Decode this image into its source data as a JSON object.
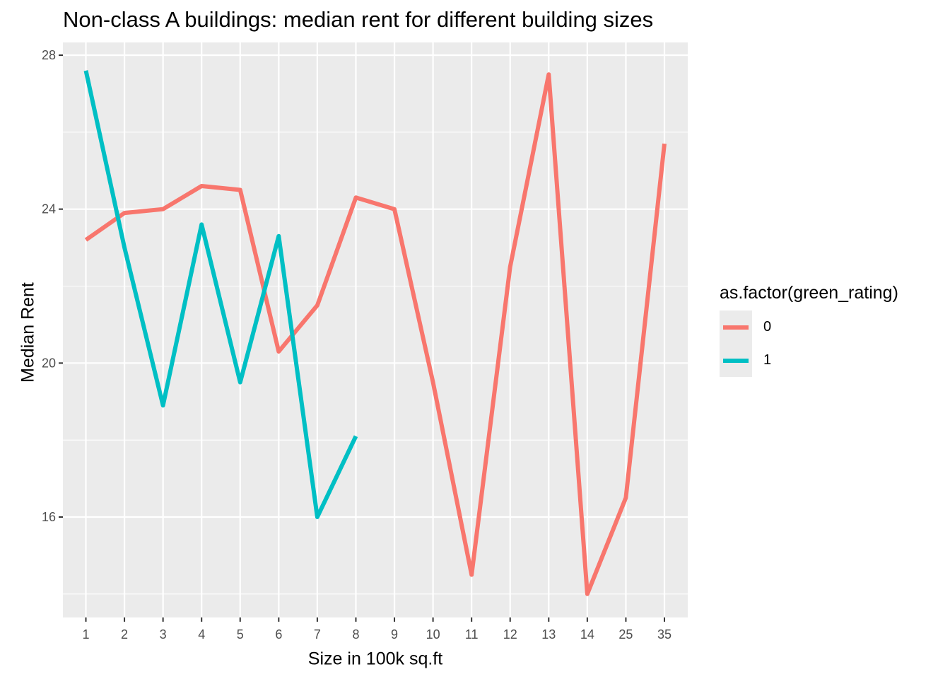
{
  "chart_data": {
    "type": "line",
    "title": "Non-class A buildings: median rent for different building sizes",
    "xlabel": "Size in 100k sq.ft",
    "ylabel": "Median Rent",
    "categories": [
      "1",
      "2",
      "3",
      "4",
      "5",
      "6",
      "7",
      "8",
      "9",
      "10",
      "11",
      "12",
      "13",
      "14",
      "25",
      "35"
    ],
    "yticks": [
      16,
      20,
      24,
      28
    ],
    "ylim": [
      13.4,
      28.3
    ],
    "grid": true,
    "legend": {
      "title": "as.factor(green_rating)",
      "placement": "right"
    },
    "series": [
      {
        "name": "0",
        "color": "#F8766D",
        "values": [
          23.2,
          23.9,
          24.0,
          24.6,
          24.5,
          20.3,
          21.5,
          24.3,
          24.0,
          19.5,
          14.5,
          22.5,
          27.5,
          14.0,
          16.5,
          25.7
        ]
      },
      {
        "name": "1",
        "color": "#00BFC4",
        "values": [
          27.6,
          23.0,
          18.9,
          23.6,
          19.5,
          23.3,
          16.0,
          18.1,
          null,
          null,
          null,
          null,
          null,
          null,
          null,
          null
        ]
      }
    ]
  }
}
